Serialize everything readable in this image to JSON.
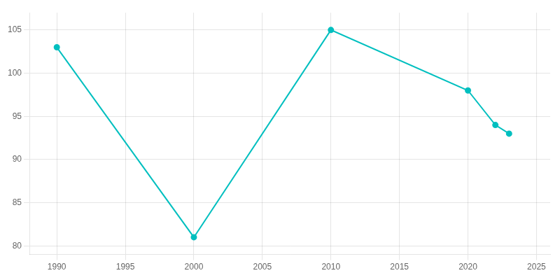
{
  "chart_data": {
    "type": "line",
    "x": [
      1990,
      2000,
      2010,
      2020,
      2022,
      2023
    ],
    "values": [
      103,
      81,
      105,
      98,
      94,
      93
    ],
    "color": "#00BFBF",
    "marker": "circle",
    "xlim": [
      1988,
      2026
    ],
    "xticks": [
      1990,
      1995,
      2000,
      2005,
      2010,
      2015,
      2020,
      2025
    ],
    "ylim": [
      79,
      107
    ],
    "yticks": [
      80,
      85,
      90,
      95,
      100,
      105
    ],
    "grid": true
  }
}
